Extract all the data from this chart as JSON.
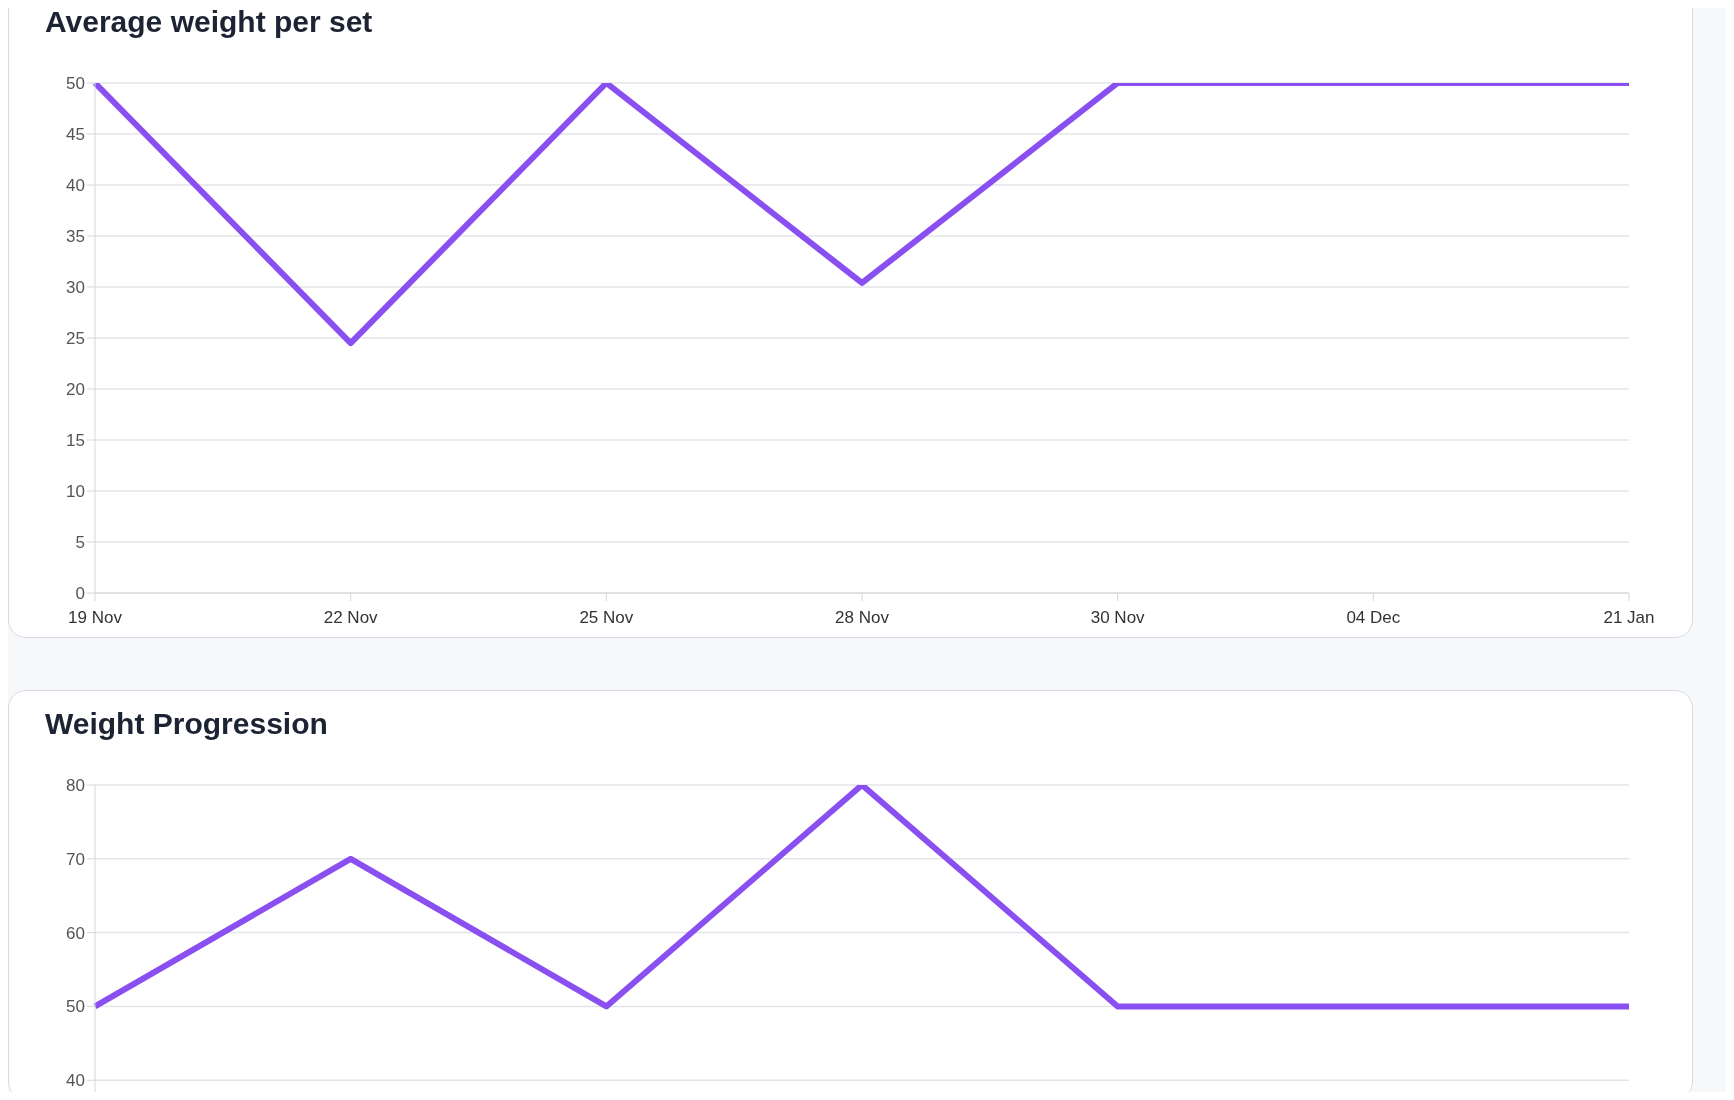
{
  "chart_data": [
    {
      "type": "line",
      "title": "Average weight per set",
      "categories": [
        "19 Nov",
        "22 Nov",
        "25 Nov",
        "28 Nov",
        "30 Nov",
        "04 Dec",
        "21 Jan"
      ],
      "series": [
        {
          "color": "#8a4ff0",
          "values": [
            50,
            24.5,
            50,
            30.4,
            50,
            50,
            50
          ]
        }
      ],
      "ylim": [
        0,
        50
      ],
      "yticks": [
        0,
        5,
        10,
        15,
        20,
        25,
        30,
        35,
        40,
        45,
        50
      ],
      "grid": "y",
      "marker": "none",
      "line_style": "solid"
    },
    {
      "type": "line",
      "title": "Weight Progression",
      "categories": [
        null,
        null,
        null,
        null,
        null,
        null,
        null
      ],
      "series": [
        {
          "color": "#8a4ff0",
          "values": [
            50,
            70,
            50,
            80,
            50,
            50,
            50
          ]
        }
      ],
      "ylim": [
        38,
        80
      ],
      "yticks": [
        40,
        50,
        60,
        70,
        80
      ],
      "grid": "y",
      "marker": "none",
      "line_style": "solid",
      "tick_labels": "y"
    }
  ]
}
